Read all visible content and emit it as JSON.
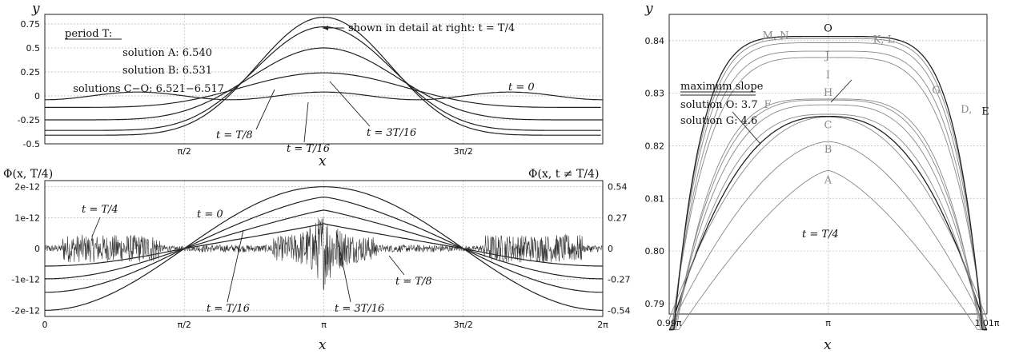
{
  "chart_data": [
    {
      "id": "top-left",
      "type": "line",
      "xlabel": "x",
      "ylabel": "y",
      "xlim": [
        0,
        6.2832
      ],
      "ylim": [
        -0.5,
        0.85
      ],
      "xticks": [
        {
          "v": 1.5708,
          "label": "π/2"
        },
        {
          "v": 4.7124,
          "label": "3π/2"
        }
      ],
      "yticks": [
        {
          "v": 0.75,
          "label": "0.75"
        },
        {
          "v": 0.5,
          "label": "0.5"
        },
        {
          "v": 0.25,
          "label": "0.25"
        },
        {
          "v": 0,
          "label": "0"
        },
        {
          "v": -0.25,
          "label": "-0.25"
        },
        {
          "v": -0.5,
          "label": "-0.5"
        }
      ],
      "grid": true,
      "series": [
        {
          "label": "t = 0",
          "amp": 0.04,
          "wavy": true
        },
        {
          "label": "t = T/16",
          "amp": 0.24
        },
        {
          "label": "t = T/8",
          "amp": 0.5
        },
        {
          "label": "t = 3T/16",
          "amp": 0.72
        },
        {
          "label": "t = T/4",
          "amp": 0.82
        }
      ],
      "period_box": {
        "title": "period T:",
        "lines": [
          "solution A: 6.540",
          "solution B: 6.531",
          "solutions C−O: 6.521−6.517"
        ]
      },
      "annotations": {
        "detail": "shown in detail at right:  t = T/4",
        "t0": "t = 0",
        "tT8": "t = T/8",
        "tT16": "t = T/16",
        "t3T16": "t = 3T/16"
      }
    },
    {
      "id": "bottom-left",
      "type": "line",
      "xlabel": "x",
      "ylabel_left": "Φ(x, T/4)",
      "ylabel_right": "Φ(x, t ≠ T/4)",
      "xlim": [
        0,
        6.2832
      ],
      "ylim": [
        -2.2,
        2.2
      ],
      "xticks": [
        {
          "v": 0,
          "label": "0"
        },
        {
          "v": 1.5708,
          "label": "π/2"
        },
        {
          "v": 3.1416,
          "label": "π"
        },
        {
          "v": 4.7124,
          "label": "3π/2"
        },
        {
          "v": 6.2832,
          "label": "2π"
        }
      ],
      "yticks_left": [
        {
          "v": 2,
          "label": "2e-12"
        },
        {
          "v": 1,
          "label": "1e-12"
        },
        {
          "v": 0,
          "label": "0"
        },
        {
          "v": -1,
          "label": "-1e-12"
        },
        {
          "v": -2,
          "label": "-2e-12"
        }
      ],
      "yticks_right": [
        {
          "v": 2,
          "label": "0.54"
        },
        {
          "v": 1,
          "label": "0.27"
        },
        {
          "v": 0,
          "label": "0"
        },
        {
          "v": -1,
          "label": "-0.27"
        },
        {
          "v": -2,
          "label": "-0.54"
        }
      ],
      "grid": true,
      "series": [
        {
          "label": "t = 0",
          "amp_right": 0.54
        },
        {
          "label": "t = T/16",
          "amp_right": 0.5
        },
        {
          "label": "t = 3T/16",
          "amp_right": 0.42
        },
        {
          "label": "t = T/8",
          "amp_right": 0.31
        },
        {
          "label": "t = T/4",
          "noise": true
        }
      ],
      "annotations": {
        "tT4": "t = T/4",
        "t0": "t = 0",
        "tT16": "t = T/16",
        "t3T16": "t = 3T/16",
        "tT8": "t = T/8"
      }
    },
    {
      "id": "right",
      "type": "line",
      "xlabel": "x",
      "ylabel": "y",
      "xlim": [
        0.99,
        1.01
      ],
      "ylim": [
        0.788,
        0.845
      ],
      "xticks": [
        {
          "v": 0.99,
          "label": "0.99π"
        },
        {
          "v": 1.0,
          "label": "π"
        },
        {
          "v": 1.01,
          "label": "1.01π"
        }
      ],
      "yticks": [
        {
          "v": 0.84,
          "label": "0.84"
        },
        {
          "v": 0.83,
          "label": "0.83"
        },
        {
          "v": 0.82,
          "label": "0.82"
        },
        {
          "v": 0.81,
          "label": "0.81"
        },
        {
          "v": 0.8,
          "label": "0.80"
        },
        {
          "v": 0.79,
          "label": "0.79"
        }
      ],
      "grid": true,
      "caption": "t = T/4",
      "slope_box": {
        "title": "maximum slope",
        "lines": [
          "solution O:  3.7",
          "solution G:  4.6"
        ]
      },
      "solution_labels": [
        {
          "text": "O",
          "peak": 0.8408,
          "dark": true
        },
        {
          "text": "M, N",
          "peak": 0.8404,
          "dark": false
        },
        {
          "text": "K, L",
          "peak": 0.8396,
          "dark": false
        },
        {
          "text": "J",
          "peak": 0.838,
          "dark": false
        },
        {
          "text": "I",
          "peak": 0.8368,
          "dark": false
        },
        {
          "text": "H",
          "peak": 0.8289,
          "dark": false
        },
        {
          "text": "G",
          "peak": 0.8287,
          "dark": false
        },
        {
          "text": "F",
          "peak": 0.8278,
          "dark": false
        },
        {
          "text": "D,",
          "peak": 0.826,
          "dark": false
        },
        {
          "text": "E",
          "peak": 0.8256,
          "dark": true
        },
        {
          "text": "C",
          "peak": 0.8255,
          "dark": false
        },
        {
          "text": "B",
          "peak": 0.8208,
          "dark": false
        },
        {
          "text": "A",
          "peak": 0.8153,
          "dark": false
        }
      ]
    }
  ]
}
